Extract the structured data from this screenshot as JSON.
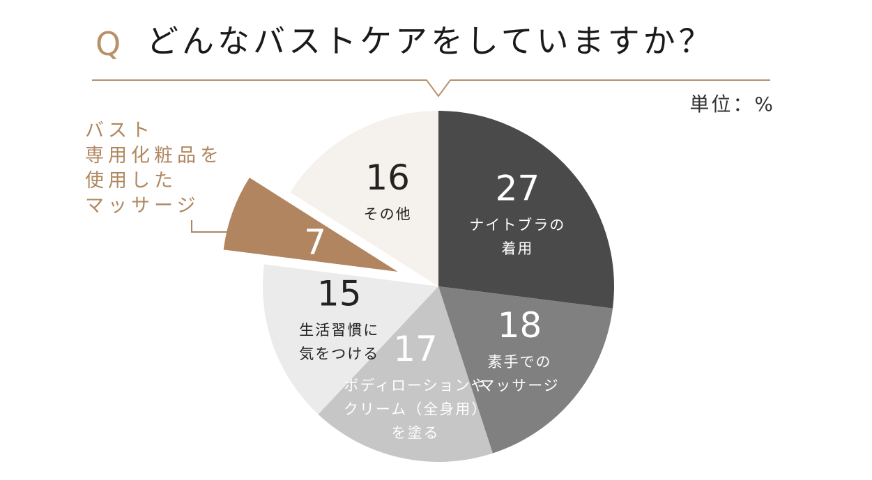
{
  "question": {
    "q_mark": "Q",
    "title": "どんなバストケアをしていますか？"
  },
  "unit_label": "単位：%",
  "callout_lines": [
    "バスト",
    "専用化粧品を",
    "使用した",
    "マッサージ"
  ],
  "colors": {
    "accent": "#b08560",
    "title_line": "#b8906a"
  },
  "chart_data": {
    "type": "pie",
    "unit": "%",
    "slices": [
      {
        "value": 27,
        "label_lines": [
          "ナイトブラの",
          "着用"
        ],
        "color": "#4a4a4a",
        "text_color": "#ffffff"
      },
      {
        "value": 18,
        "label_lines": [
          "素手での",
          "マッサージ"
        ],
        "color": "#808080",
        "text_color": "#ffffff"
      },
      {
        "value": 17,
        "label_lines": [
          "ボディローションや",
          "クリーム（全身用）",
          "を塗る"
        ],
        "color": "#c6c6c6",
        "text_color": "#ffffff"
      },
      {
        "value": 15,
        "label_lines": [
          "生活習慣に",
          "気をつける"
        ],
        "color": "#ebebeb",
        "text_color": "#222222"
      },
      {
        "value": 7,
        "label_lines": [],
        "color": "#b08560",
        "text_color": "#ffffff",
        "exploded": true
      },
      {
        "value": 16,
        "label_lines": [
          "その他"
        ],
        "color": "#f5f1ec",
        "text_color": "#222222"
      }
    ]
  }
}
